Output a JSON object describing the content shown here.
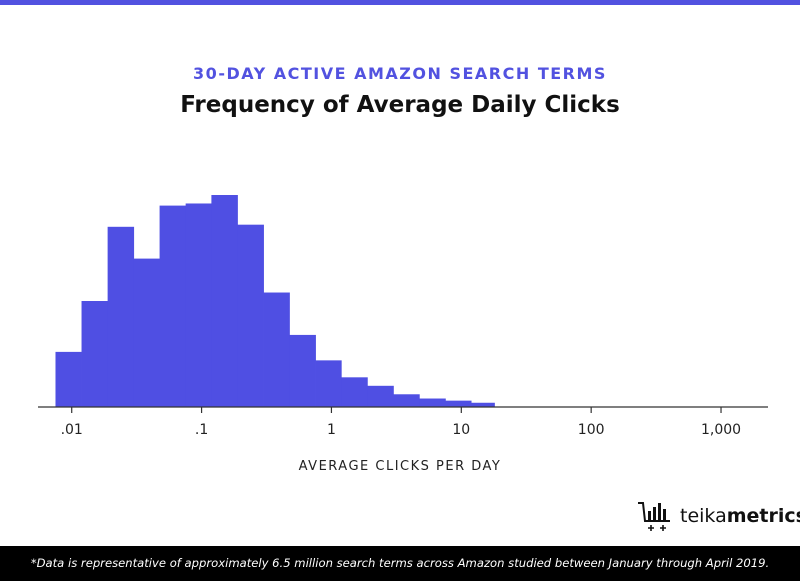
{
  "colors": {
    "accent": "#5252e0",
    "bar": "#4f4fe3",
    "axis": "#333333",
    "footer_bg": "#000000",
    "footer_text": "#ffffff"
  },
  "header": {
    "subtitle": "30-DAY ACTIVE AMAZON SEARCH TERMS",
    "title": "Frequency of Average Daily Clicks"
  },
  "chart_data": {
    "type": "bar",
    "title": "Frequency of Average Daily Clicks",
    "xlabel": "AVERAGE CLICKS PER DAY",
    "ylabel": "",
    "x_scale": "log",
    "xlim": [
      0.0055,
      2300
    ],
    "x_ticks": [
      0.01,
      0.1,
      1,
      10,
      100,
      1000
    ],
    "x_tick_labels": [
      ".01",
      ".1",
      "1",
      "10",
      "100",
      "1,000"
    ],
    "y_axis_shown": false,
    "ylim": [
      0,
      100
    ],
    "grid": false,
    "bins": [
      {
        "x0": 0.0075,
        "x1": 0.0119,
        "value": 26
      },
      {
        "x0": 0.0119,
        "x1": 0.0189,
        "value": 50
      },
      {
        "x0": 0.0189,
        "x1": 0.03,
        "value": 85
      },
      {
        "x0": 0.03,
        "x1": 0.0475,
        "value": 70
      },
      {
        "x0": 0.0475,
        "x1": 0.0754,
        "value": 95
      },
      {
        "x0": 0.0754,
        "x1": 0.119,
        "value": 96
      },
      {
        "x0": 0.119,
        "x1": 0.189,
        "value": 100
      },
      {
        "x0": 0.189,
        "x1": 0.3,
        "value": 86
      },
      {
        "x0": 0.3,
        "x1": 0.475,
        "value": 54
      },
      {
        "x0": 0.475,
        "x1": 0.754,
        "value": 34
      },
      {
        "x0": 0.754,
        "x1": 1.19,
        "value": 22
      },
      {
        "x0": 1.19,
        "x1": 1.89,
        "value": 14
      },
      {
        "x0": 1.89,
        "x1": 3.0,
        "value": 10
      },
      {
        "x0": 3.0,
        "x1": 4.75,
        "value": 6
      },
      {
        "x0": 4.75,
        "x1": 7.54,
        "value": 4
      },
      {
        "x0": 7.54,
        "x1": 11.9,
        "value": 3
      },
      {
        "x0": 11.9,
        "x1": 18.0,
        "value": 2
      }
    ]
  },
  "branding": {
    "logo_icon": "shopping-cart-bars-icon",
    "logo_text_light": "teika",
    "logo_text_bold": "metrics"
  },
  "footer": {
    "note": "*Data is representative of approximately 6.5 million search terms across Amazon studied between January through April 2019."
  }
}
